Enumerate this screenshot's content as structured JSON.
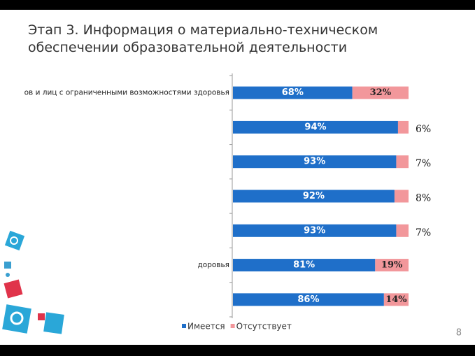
{
  "title": "Этап 3. Информация о материально-техническом обеспечении образовательной деятельности",
  "page_number": "8",
  "chart_data": {
    "type": "stacked-barh",
    "categories": [
      "ов и лиц с ограниченными возможностями здоровья",
      null,
      null,
      null,
      null,
      "доровья",
      null
    ],
    "series": [
      {
        "name": "Имеется",
        "color": "#1f6fc9",
        "values": [
          68,
          94,
          93,
          92,
          93,
          81,
          86
        ],
        "value_labels": [
          "68%",
          "94%",
          "93%",
          "92%",
          "93%",
          "81%",
          "86%"
        ]
      },
      {
        "name": "Отсутствует",
        "color": "#f2979b",
        "values": [
          32,
          6,
          7,
          8,
          7,
          19,
          14
        ],
        "value_labels": [
          "32%",
          "6%",
          "7%",
          "8%",
          "7%",
          "19%",
          "14%"
        ]
      }
    ],
    "xlim": [
      0,
      100
    ]
  }
}
